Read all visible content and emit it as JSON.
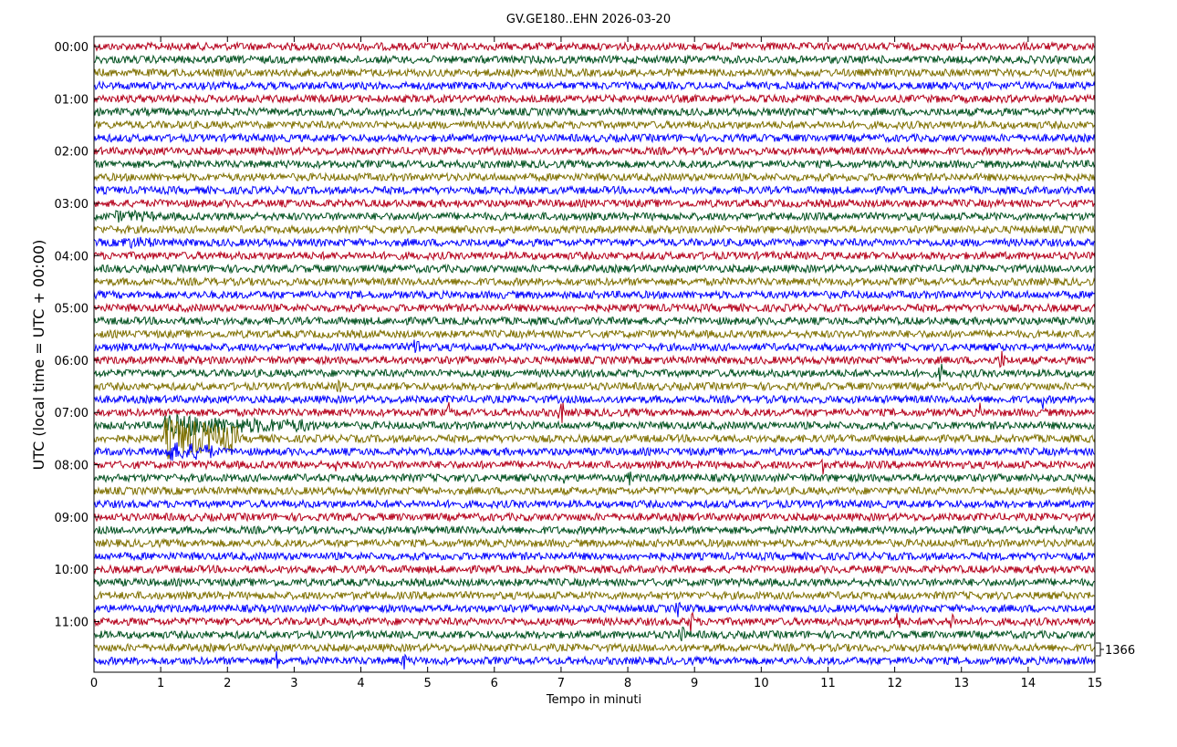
{
  "chart_data": {
    "type": "line",
    "title": "GV.GE180..EHN 2026-03-20",
    "xlabel": "Tempo in minuti",
    "ylabel": "UTC (local time = UTC + 00:00)",
    "xlim": [
      0,
      15
    ],
    "x_ticks": [
      "0",
      "1",
      "2",
      "3",
      "4",
      "5",
      "6",
      "7",
      "8",
      "9",
      "10",
      "11",
      "12",
      "13",
      "14",
      "15"
    ],
    "y_ticks": [
      "00:00",
      "01:00",
      "02:00",
      "03:00",
      "04:00",
      "05:00",
      "06:00",
      "07:00",
      "08:00",
      "09:00",
      "10:00",
      "11:00"
    ],
    "trace_interval_minutes": 15,
    "trace_count": 48,
    "trace_colors": [
      "#b5001b",
      "#00501e",
      "#7f7000",
      "#0000ff"
    ],
    "scale_label": "1366",
    "grid": false,
    "events": [
      {
        "row": 30,
        "x_start": 1.05,
        "x_end": 2.15,
        "amplitude": 3.2
      },
      {
        "row": 29,
        "x_start": 1.05,
        "x_end": 2.0,
        "amplitude": 1.6
      },
      {
        "row": 29,
        "x_start": 1.7,
        "x_end": 3.3,
        "amplitude": 0.9
      },
      {
        "row": 31,
        "x_start": 1.05,
        "x_end": 1.8,
        "amplitude": 1.2
      },
      {
        "row": 23,
        "x_start": 4.75,
        "x_end": 4.95,
        "amplitude": 1.0
      },
      {
        "row": 15,
        "x_start": 0.4,
        "x_end": 0.9,
        "amplitude": 0.5
      },
      {
        "row": 13,
        "x_start": 0.3,
        "x_end": 0.9,
        "amplitude": 0.5
      },
      {
        "row": 28,
        "x_start": 5.3,
        "x_end": 5.35,
        "amplitude": 1.6
      },
      {
        "row": 28,
        "x_start": 6.95,
        "x_end": 7.05,
        "amplitude": 1.8
      },
      {
        "row": 28,
        "x_start": 13.25,
        "x_end": 13.3,
        "amplitude": 1.2
      },
      {
        "row": 27,
        "x_start": 14.2,
        "x_end": 14.25,
        "amplitude": 1.4
      },
      {
        "row": 26,
        "x_start": 3.65,
        "x_end": 3.75,
        "amplitude": 1.3
      },
      {
        "row": 25,
        "x_start": 12.65,
        "x_end": 12.75,
        "amplitude": 1.3
      },
      {
        "row": 24,
        "x_start": 12.1,
        "x_end": 12.15,
        "amplitude": 1.1
      },
      {
        "row": 24,
        "x_start": 13.55,
        "x_end": 13.65,
        "amplitude": 1.3
      },
      {
        "row": 33,
        "x_start": 6.95,
        "x_end": 7.05,
        "amplitude": 1.4
      },
      {
        "row": 33,
        "x_start": 4.05,
        "x_end": 4.1,
        "amplitude": 1.0
      },
      {
        "row": 33,
        "x_start": 8.0,
        "x_end": 8.05,
        "amplitude": 1.0
      },
      {
        "row": 32,
        "x_start": 10.9,
        "x_end": 10.95,
        "amplitude": 1.1
      },
      {
        "row": 32,
        "x_start": 3.55,
        "x_end": 3.65,
        "amplitude": 0.9
      },
      {
        "row": 44,
        "x_start": 8.9,
        "x_end": 9.0,
        "amplitude": 1.6
      },
      {
        "row": 44,
        "x_start": 12.0,
        "x_end": 12.1,
        "amplitude": 1.6
      },
      {
        "row": 44,
        "x_start": 12.8,
        "x_end": 12.9,
        "amplitude": 1.4
      },
      {
        "row": 45,
        "x_start": 8.75,
        "x_end": 8.85,
        "amplitude": 1.5
      },
      {
        "row": 43,
        "x_start": 8.72,
        "x_end": 8.78,
        "amplitude": 1.6
      },
      {
        "row": 47,
        "x_start": 2.7,
        "x_end": 2.8,
        "amplitude": 1.4
      },
      {
        "row": 47,
        "x_start": 4.6,
        "x_end": 4.7,
        "amplitude": 1.0
      },
      {
        "row": 37,
        "x_start": 10.55,
        "x_end": 10.6,
        "amplitude": 1.0
      }
    ]
  }
}
